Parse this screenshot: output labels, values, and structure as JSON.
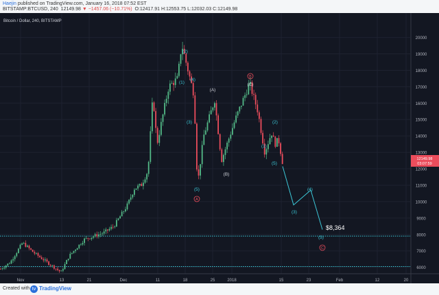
{
  "header": {
    "author": "Haejin",
    "publish_text": "published on TradingView.com, January 16, 2018 07:52 EST",
    "symbol": "BITSTAMP:BTCUSD, 240",
    "price": "12149.98",
    "change": "−1457.06 (−10.71%)",
    "ohlc": "O:12417.91 H:12553.75 L:12032.03 C:12149.98"
  },
  "chart_title": "Bitcoin / Dollar, 240, BITSTAMP",
  "footer": {
    "created": "Created with",
    "brand": "TradingView"
  },
  "chart_data": {
    "type": "candlestick",
    "title": "Bitcoin / Dollar, 240, BITSTAMP",
    "x_tick_labels": [
      "Nov",
      "13",
      "21",
      "Dec",
      "11",
      "18",
      "25",
      "2018",
      "15",
      "23",
      "Feb",
      "12",
      "20"
    ],
    "y_ticks": [
      6000,
      7000,
      8000,
      9000,
      10000,
      11000,
      12000,
      13000,
      14000,
      15000,
      16000,
      17000,
      18000,
      19000,
      20000
    ],
    "ylim": [
      5400,
      20400
    ],
    "price_tags": [
      "12149.98",
      "03:07:59"
    ],
    "approx_price_path": [
      [
        "Nov start",
        5900
      ],
      [
        "Nov 5",
        6300
      ],
      [
        "Nov 8",
        7500
      ],
      [
        "Nov 10",
        6900
      ],
      [
        "Nov 12",
        5700
      ],
      [
        "Nov 14",
        6700
      ],
      [
        "Nov 18",
        7700
      ],
      [
        "Nov 21",
        8100
      ],
      [
        "Nov 25",
        8500
      ],
      [
        "Nov 28",
        9800
      ],
      [
        "Nov 30",
        10800
      ],
      [
        "Dec 2",
        11000
      ],
      [
        "Dec 5",
        11900
      ],
      [
        "Dec 7",
        16500
      ],
      [
        "Dec 9",
        13500
      ],
      [
        "Dec 12",
        17000
      ],
      [
        "Dec 15",
        17500
      ],
      [
        "Dec 17",
        19600
      ],
      [
        "Dec 19",
        18200
      ],
      [
        "Dec 21",
        16500
      ],
      [
        "Dec 22",
        11000
      ],
      [
        "Dec 24",
        14000
      ],
      [
        "Dec 27",
        16200
      ],
      [
        "Dec 30",
        12500
      ],
      [
        "Jan 1",
        13500
      ],
      [
        "Jan 3",
        15000
      ],
      [
        "Jan 6",
        17200
      ],
      [
        "Jan 9",
        15500
      ],
      [
        "Jan 11",
        13000
      ],
      [
        "Jan 13",
        14200
      ],
      [
        "Jan 14",
        13500
      ],
      [
        "Jan 15",
        13800
      ],
      [
        "Jan 16",
        12150
      ]
    ],
    "projection_path": [
      12150,
      9800,
      10700,
      8300
    ],
    "horizontal_lines": [
      7900,
      6050
    ],
    "target_label": "$8,364",
    "wave_labels": {
      "cyan": [
        "(1)",
        "(2)",
        "(3)",
        "(4)",
        "(5)",
        "(1)",
        "(2)",
        "(5)",
        "(3)",
        "(4)",
        "(5)"
      ],
      "white": [
        "(A)",
        "(B)",
        "(C)"
      ],
      "red": [
        "A",
        "B",
        "C"
      ]
    }
  }
}
